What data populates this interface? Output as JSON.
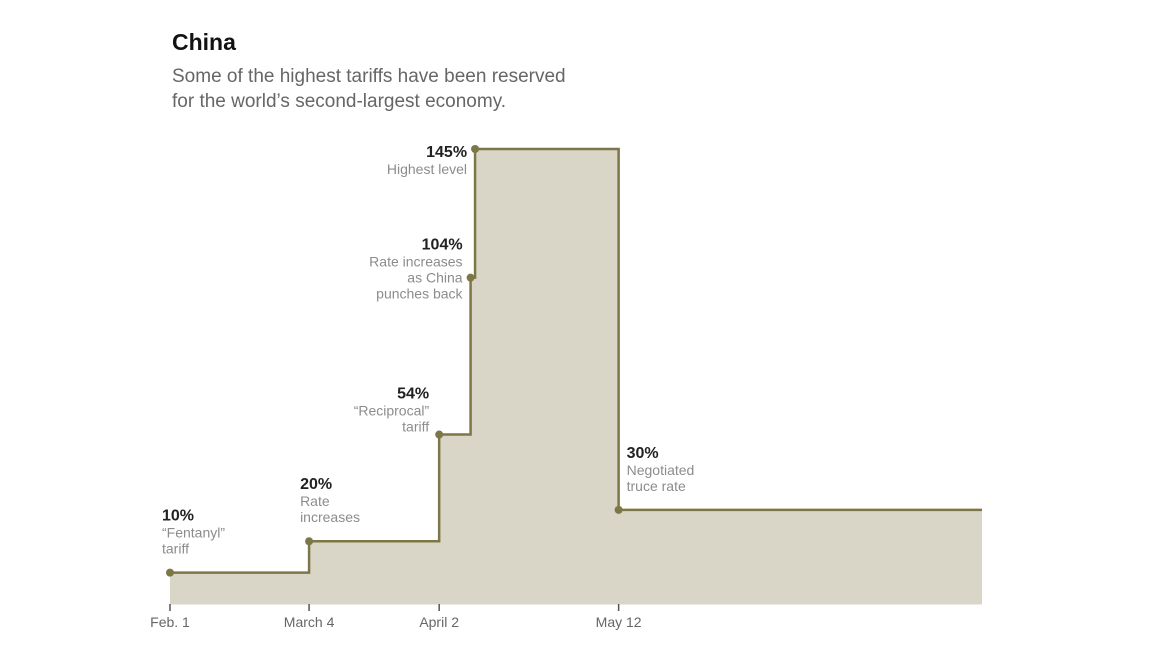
{
  "title": "China",
  "subtitle_lines": [
    "Some of the highest tariffs have been reserved",
    "for the world’s second-largest economy."
  ],
  "colors": {
    "line": "#7d7646",
    "area": "#d9d6c7",
    "axis": "#999999"
  },
  "chart_data": {
    "type": "area",
    "title": "China",
    "subtitle": "Some of the highest tariffs have been reserved for the world’s second-largest economy.",
    "xlabel": "",
    "ylabel": "",
    "step": "after",
    "x_ticks": [
      "Feb. 1",
      "March 4",
      "April 2",
      "May 12"
    ],
    "xlim": [
      "Feb. 1",
      "Aug. 1"
    ],
    "ylim": [
      0,
      145
    ],
    "grid": false,
    "points": [
      {
        "date": "Feb. 1",
        "value": 10
      },
      {
        "date": "March 4",
        "value": 20
      },
      {
        "date": "April 2",
        "value": 54
      },
      {
        "date": "April 9",
        "value": 104
      },
      {
        "date": "April 10",
        "value": 145
      },
      {
        "date": "May 12",
        "value": 30
      }
    ],
    "annotations": [
      {
        "value_label": "10%",
        "lines": [
          "“Fentanyl”",
          "tariff"
        ]
      },
      {
        "value_label": "20%",
        "lines": [
          "Rate",
          "increases"
        ]
      },
      {
        "value_label": "54%",
        "lines": [
          "“Reciprocal”",
          "tariff"
        ]
      },
      {
        "value_label": "104%",
        "lines": [
          "Rate increases",
          "as China",
          "punches back"
        ]
      },
      {
        "value_label": "145%",
        "lines": [
          "Highest level"
        ]
      },
      {
        "value_label": "30%",
        "lines": [
          "Negotiated",
          "truce rate"
        ]
      }
    ]
  }
}
